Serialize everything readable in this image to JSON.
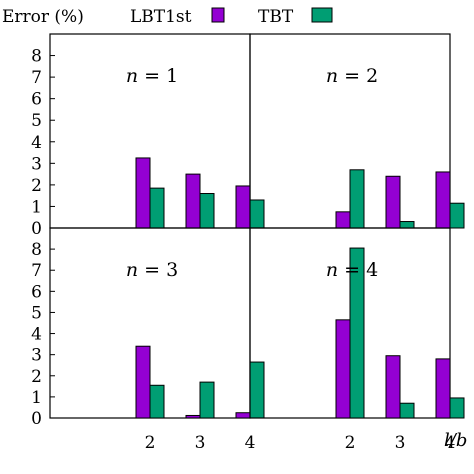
{
  "chart_data": {
    "type": "bar",
    "layout": "2x2 panels, shared axes",
    "ylabel": "Error (%)",
    "xlabel": "l/b",
    "categories": [
      "2",
      "3",
      "4"
    ],
    "ylim": [
      0,
      9
    ],
    "yticks": [
      0,
      1,
      2,
      3,
      4,
      5,
      6,
      7,
      8
    ],
    "grid": false,
    "legend_position": "top",
    "series_info": [
      {
        "name": "LBT1st",
        "color": "#9400d3"
      },
      {
        "name": "TBT",
        "color": "#009e73"
      }
    ],
    "panels": [
      {
        "n_var": "n",
        "n_eq": " = ",
        "n_val": "1",
        "series": [
          {
            "name": "LBT1st",
            "values": [
              3.25,
              2.5,
              1.95
            ]
          },
          {
            "name": "TBT",
            "values": [
              1.85,
              1.6,
              1.3
            ]
          }
        ]
      },
      {
        "n_var": "n",
        "n_eq": " = ",
        "n_val": "2",
        "series": [
          {
            "name": "LBT1st",
            "values": [
              0.75,
              2.4,
              2.6
            ]
          },
          {
            "name": "TBT",
            "values": [
              2.7,
              0.3,
              1.15
            ]
          }
        ]
      },
      {
        "n_var": "n",
        "n_eq": " = ",
        "n_val": "3",
        "series": [
          {
            "name": "LBT1st",
            "values": [
              3.4,
              0.12,
              0.25
            ]
          },
          {
            "name": "TBT",
            "values": [
              1.55,
              1.7,
              2.65
            ]
          }
        ]
      },
      {
        "n_var": "n",
        "n_eq": " = ",
        "n_val": "4",
        "series": [
          {
            "name": "LBT1st",
            "values": [
              4.65,
              2.95,
              2.8
            ]
          },
          {
            "name": "TBT",
            "values": [
              8.05,
              0.7,
              0.95
            ]
          }
        ]
      }
    ]
  }
}
